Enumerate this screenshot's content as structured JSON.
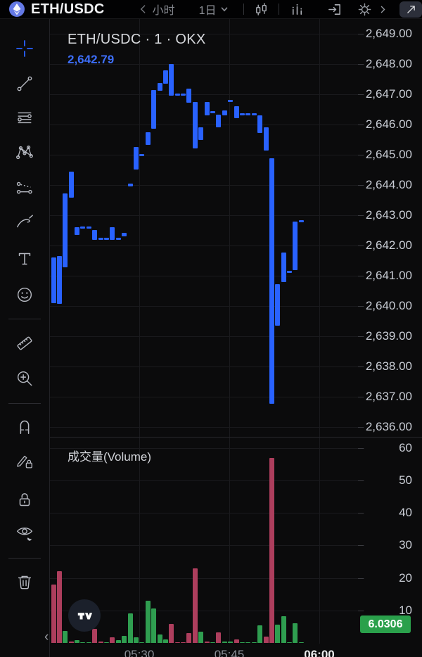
{
  "topbar": {
    "symbol": "ETH/USDC",
    "timeframe_label": "小时",
    "interval_label": "1日"
  },
  "legend": {
    "title": "ETH/USDC · 1 · OKX",
    "price": "2,642.79"
  },
  "volume_pane": {
    "label": "成交量(Volume)",
    "badge": "6.0306"
  },
  "time_axis_hint": "‹",
  "colors": {
    "candle": "#2962ff",
    "legend_price": "#3d6ef8",
    "volume_up": "#2f9e50",
    "volume_down": "#ad3e5d",
    "badge_green": "#2aa04b",
    "axis_text": "#c9cdd5",
    "eth_logo_blue": "#6479e6"
  },
  "toolbar_icons": [
    "crosshair-icon",
    "trend-line-icon",
    "horizontal-lines-icon",
    "xabcd-pattern-icon",
    "forecast-icon",
    "brush-icon",
    "text-icon",
    "emoji-icon",
    "ruler-icon",
    "zoom-in-icon",
    "magnet-icon",
    "draw-lock-icon",
    "lock-icon",
    "hide-drawings-icon",
    "delete-icon"
  ],
  "topbar_icons": [
    "eth-logo",
    "chevron-left-icon",
    "caret-down-icon",
    "candles-icon",
    "indicators-icon",
    "arrow-bracket-icon",
    "gear-icon",
    "chevron-right-icon",
    "expand-icon"
  ],
  "chart_data": {
    "type": "candlestick",
    "symbol": "ETH/USDC",
    "interval": "1",
    "exchange": "OKX",
    "last_price": 2642.79,
    "last_volume": 6.0306,
    "price_axis": {
      "min": 2636,
      "max": 2649,
      "step": 1,
      "labels": [
        "2,649.00",
        "2,648.00",
        "2,647.00",
        "2,646.00",
        "2,645.00",
        "2,644.00",
        "2,643.00",
        "2,642.00",
        "2,641.00",
        "2,640.00",
        "2,639.00",
        "2,638.00",
        "2,637.00",
        "2,636.00"
      ]
    },
    "volume_axis": {
      "min": 0,
      "max": 60,
      "step": 10,
      "labels": [
        "60",
        "50",
        "40",
        "30",
        "20",
        "10"
      ]
    },
    "time_labels": [
      {
        "label": "05:30",
        "bold": false
      },
      {
        "label": "05:45",
        "bold": false
      },
      {
        "label": "06:00",
        "bold": true
      }
    ],
    "grid": true,
    "bars": [
      {
        "top": 2641.6,
        "bottom": 2640.1,
        "vol": 18,
        "dir": "down"
      },
      {
        "top": 2641.65,
        "bottom": 2640.07,
        "vol": 22,
        "dir": "down"
      },
      {
        "top": 2643.72,
        "bottom": 2641.28,
        "vol": 3.7,
        "dir": "up"
      },
      {
        "top": 2644.44,
        "bottom": 2643.58,
        "vol": 0.5,
        "dir": "down"
      },
      {
        "top": 2642.6,
        "bottom": 2642.35,
        "vol": 0.8,
        "dir": "up"
      },
      {
        "top": 2642.62,
        "bottom": 2642.55,
        "vol": 0.2,
        "dir": "up"
      },
      {
        "top": 2642.62,
        "bottom": 2642.55,
        "vol": 0.2,
        "dir": "up"
      },
      {
        "top": 2642.51,
        "bottom": 2642.19,
        "vol": 4.3,
        "dir": "down"
      },
      {
        "top": 2642.25,
        "bottom": 2642.18,
        "vol": 0.5,
        "dir": "down"
      },
      {
        "top": 2642.25,
        "bottom": 2642.18,
        "vol": 0.1,
        "dir": "up"
      },
      {
        "top": 2642.6,
        "bottom": 2642.19,
        "vol": 1.7,
        "dir": "down"
      },
      {
        "top": 2642.25,
        "bottom": 2642.18,
        "vol": 0.9,
        "dir": "up"
      },
      {
        "top": 2642.42,
        "bottom": 2642.3,
        "vol": 2.2,
        "dir": "up"
      },
      {
        "top": 2644.05,
        "bottom": 2643.95,
        "vol": 9.1,
        "dir": "up"
      },
      {
        "top": 2645.26,
        "bottom": 2644.51,
        "vol": 1.7,
        "dir": "up"
      },
      {
        "top": 2645.02,
        "bottom": 2644.95,
        "vol": 0.3,
        "dir": "up"
      },
      {
        "top": 2645.74,
        "bottom": 2645.33,
        "vol": 13,
        "dir": "up"
      },
      {
        "top": 2647.14,
        "bottom": 2645.86,
        "vol": 10.6,
        "dir": "up"
      },
      {
        "top": 2647.37,
        "bottom": 2647.12,
        "vol": 2.6,
        "dir": "up"
      },
      {
        "top": 2647.79,
        "bottom": 2647.35,
        "vol": 1.1,
        "dir": "up"
      },
      {
        "top": 2648.0,
        "bottom": 2646.95,
        "vol": 5.8,
        "dir": "down"
      },
      {
        "top": 2647.03,
        "bottom": 2646.96,
        "vol": 0.2,
        "dir": "down"
      },
      {
        "top": 2647.03,
        "bottom": 2646.96,
        "vol": 0.1,
        "dir": "down"
      },
      {
        "top": 2647.19,
        "bottom": 2646.72,
        "vol": 3.0,
        "dir": "down"
      },
      {
        "top": 2646.74,
        "bottom": 2645.21,
        "vol": 23,
        "dir": "down"
      },
      {
        "top": 2645.91,
        "bottom": 2645.49,
        "vol": 3.5,
        "dir": "up"
      },
      {
        "top": 2646.74,
        "bottom": 2646.3,
        "vol": 0.4,
        "dir": "down"
      },
      {
        "top": 2646.45,
        "bottom": 2646.38,
        "vol": 0.1,
        "dir": "up"
      },
      {
        "top": 2646.33,
        "bottom": 2645.91,
        "vol": 3.3,
        "dir": "down"
      },
      {
        "top": 2646.47,
        "bottom": 2646.3,
        "vol": 0.4,
        "dir": "up"
      },
      {
        "top": 2646.82,
        "bottom": 2646.75,
        "vol": 0.4,
        "dir": "up"
      },
      {
        "top": 2646.6,
        "bottom": 2646.21,
        "vol": 1.0,
        "dir": "down"
      },
      {
        "top": 2646.38,
        "bottom": 2646.31,
        "vol": 0.2,
        "dir": "up"
      },
      {
        "top": 2646.38,
        "bottom": 2646.31,
        "vol": 0.1,
        "dir": "up"
      },
      {
        "top": 2646.38,
        "bottom": 2646.31,
        "vol": 0.3,
        "dir": "up"
      },
      {
        "top": 2646.3,
        "bottom": 2645.72,
        "vol": 5.4,
        "dir": "up"
      },
      {
        "top": 2645.91,
        "bottom": 2645.14,
        "vol": 1.9,
        "dir": "down"
      },
      {
        "top": 2644.88,
        "bottom": 2636.77,
        "vol": 57,
        "dir": "down"
      },
      {
        "top": 2640.72,
        "bottom": 2639.35,
        "vol": 5.6,
        "dir": "up"
      },
      {
        "top": 2641.77,
        "bottom": 2640.79,
        "vol": 8.2,
        "dir": "up"
      },
      {
        "top": 2641.17,
        "bottom": 2641.1,
        "vol": 0.3,
        "dir": "up"
      },
      {
        "top": 2642.79,
        "bottom": 2641.19,
        "vol": 6.0,
        "dir": "up"
      },
      {
        "top": 2642.83,
        "bottom": 2642.76,
        "vol": 0.1,
        "dir": "up"
      }
    ]
  }
}
